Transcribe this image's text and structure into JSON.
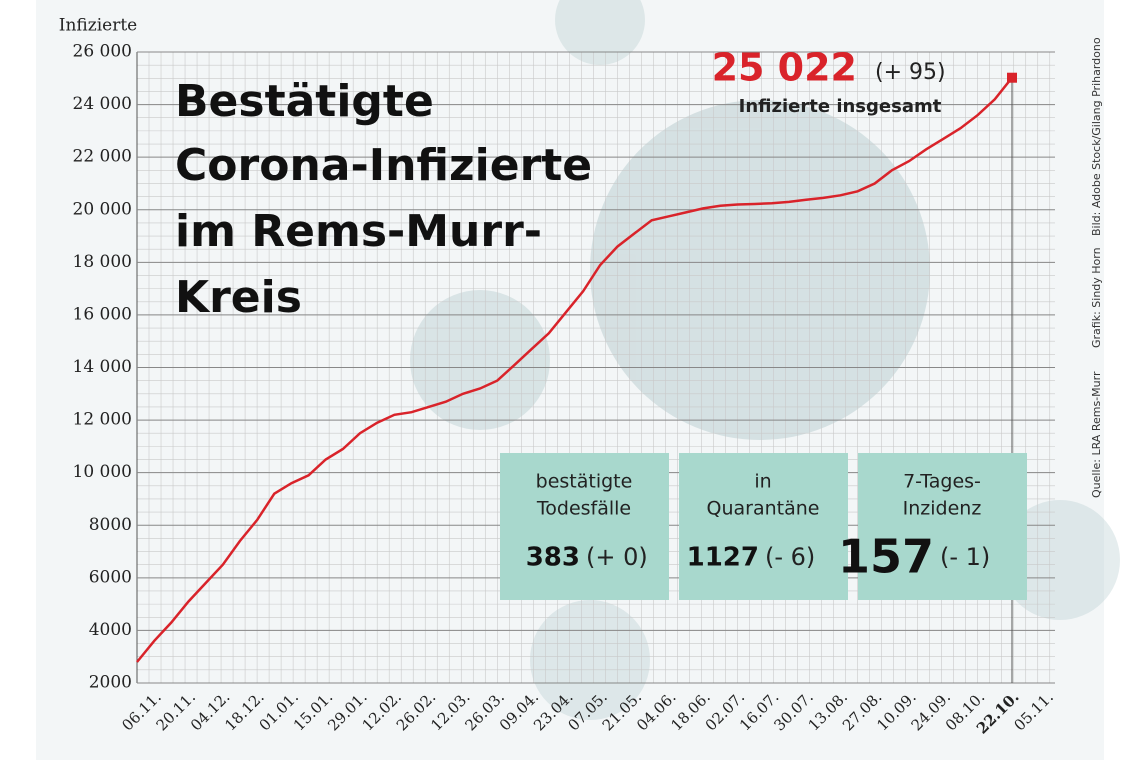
{
  "chart_data": {
    "type": "line",
    "title": [
      "Bestätigte",
      "Corona-Infizierte",
      "im Rems-Murr-",
      "Kreis"
    ],
    "y_axis_label": "Infizierte",
    "categories": [
      null,
      "06.11.",
      null,
      "20.11.",
      null,
      "04.12.",
      null,
      "18.12.",
      null,
      "01.01.",
      null,
      "15.01.",
      null,
      "29.01.",
      null,
      "12.02.",
      null,
      "26.02.",
      null,
      "12.03.",
      null,
      "26.03.",
      null,
      "09.04.",
      null,
      "23.04.",
      null,
      "07.05.",
      null,
      "21.05.",
      null,
      "04.06.",
      null,
      "18.06.",
      null,
      "02.07.",
      null,
      "16.07.",
      null,
      "30.07.",
      null,
      "13.08.",
      null,
      "27.08.",
      null,
      "10.09.",
      null,
      "24.09.",
      null,
      "08.10.",
      null,
      "22.10.",
      null,
      "05.11."
    ],
    "series": [
      {
        "name": "Infizierte",
        "color": "#d9232a",
        "values": [
          2800,
          3600,
          4300,
          5100,
          5800,
          6500,
          7400,
          8200,
          9200,
          9600,
          9900,
          10500,
          10900,
          11500,
          11900,
          12200,
          12300,
          12500,
          12700,
          13000,
          13200,
          13500,
          14100,
          14700,
          15300,
          16100,
          16900,
          17900,
          18600,
          19100,
          19600,
          19750,
          19900,
          20050,
          20150,
          20200,
          20220,
          20250,
          20300,
          20380,
          20450,
          20550,
          20700,
          21000,
          21500,
          21850,
          22300,
          22700,
          23100,
          23600,
          24200,
          25022,
          null,
          null
        ]
      }
    ],
    "ylim": [
      2000,
      26000
    ],
    "yticks": [
      2000,
      4000,
      6000,
      8000,
      {
        "value": 10000,
        "label": "10 000"
      },
      {
        "value": 12000,
        "label": "12 000"
      },
      {
        "value": 14000,
        "label": "14 000"
      },
      {
        "value": 16000,
        "label": "16 000"
      },
      {
        "value": 18000,
        "label": "18 000"
      },
      {
        "value": 20000,
        "label": "20 000"
      },
      {
        "value": 22000,
        "label": "22 000"
      },
      {
        "value": 24000,
        "label": "24 000"
      },
      {
        "value": 26000,
        "label": "26 000"
      }
    ],
    "grid": true,
    "annotation": {
      "total": "25 022",
      "change": "(+ 95)",
      "text": "Infizierte insgesamt"
    },
    "stats": [
      {
        "label": [
          "bestätigte",
          "Todesfälle"
        ],
        "value": 383,
        "change": "(+ 0)"
      },
      {
        "label": [
          "in",
          "Quarantäne"
        ],
        "value": 1127,
        "change": "(- 6)"
      },
      {
        "label": [
          "7-Tages-",
          "Inzidenz"
        ],
        "value": 157,
        "change": "(- 1)"
      }
    ],
    "credits": [
      "Quelle: LRA Rems-Murr",
      "Grafik: Sindy Horn",
      "Bild: Adobe Stock/Gilang Prihardono"
    ]
  }
}
